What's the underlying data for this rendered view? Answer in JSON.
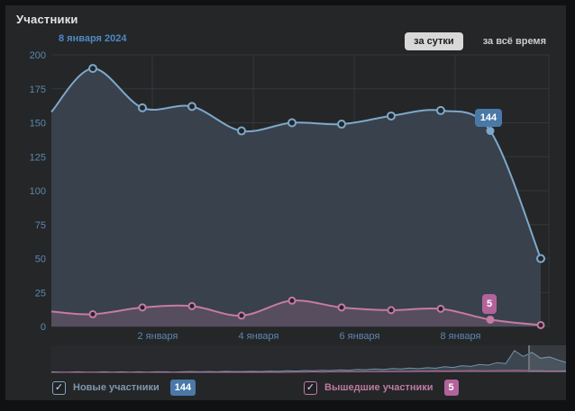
{
  "panel": {
    "title": "Участники"
  },
  "header": {
    "date_label": "8 января 2024",
    "range_buttons": [
      {
        "label": "за сутки",
        "active": true
      },
      {
        "label": "за всё время",
        "active": false
      }
    ]
  },
  "chart_data": {
    "type": "area",
    "title": "Участники",
    "tooltip_date": "8 января 2024",
    "x_tick_labels": [
      "2 января",
      "4 января",
      "6 января",
      "8 января"
    ],
    "y_ticks": [
      0,
      25,
      50,
      75,
      100,
      125,
      150,
      175,
      200
    ],
    "ylim": [
      0,
      200
    ],
    "grid": true,
    "legend_position": "bottom",
    "series": [
      {
        "name": "Новые участники",
        "color": "#7ea8ca",
        "fill": "#38414c",
        "values": [
          158,
          190,
          161,
          162,
          144,
          150,
          149,
          155,
          159,
          144,
          50
        ],
        "highlight_index": 9,
        "highlight_value_label": "144"
      },
      {
        "name": "Вышедшие участники",
        "color": "#c67ba2",
        "fill": "rgba(198,123,162,0.22)",
        "values": [
          11,
          9,
          14,
          15,
          8,
          19,
          14,
          12,
          13,
          5,
          1
        ],
        "highlight_index": 9,
        "highlight_value_label": "5"
      }
    ],
    "navigator": {
      "blue": [
        2,
        1,
        1,
        2,
        1,
        1,
        2,
        1,
        2,
        1,
        2,
        1,
        2,
        2,
        1,
        2,
        3,
        2,
        3,
        2,
        4,
        3,
        3,
        4,
        3,
        5,
        4,
        6,
        5,
        7,
        6,
        8,
        7,
        9,
        8,
        11,
        10,
        13,
        11,
        15,
        13,
        17,
        14,
        18,
        16,
        22,
        19,
        26,
        23,
        31,
        28,
        38,
        34,
        85,
        62,
        78,
        55,
        60,
        48,
        38
      ],
      "pink": [
        0,
        0,
        0,
        0,
        0,
        0,
        0,
        0,
        0,
        0,
        0,
        0,
        0,
        0,
        0,
        0,
        0,
        0,
        0,
        0,
        0,
        0,
        0,
        0,
        0,
        0,
        0,
        0,
        1,
        1,
        2,
        1,
        2,
        2,
        3,
        2,
        3,
        3,
        4,
        3,
        4,
        4,
        5,
        5,
        6,
        5,
        6,
        6,
        7,
        6,
        6,
        7,
        7,
        8,
        7,
        6,
        6,
        5,
        5,
        6
      ]
    }
  },
  "colors": {
    "panel_bg": "#242628",
    "grid": "#35383c",
    "axis_label": "#5e87ae",
    "blue_line": "#7ea8ca",
    "blue_fill": "#38414c",
    "pink_line": "#c67ba2",
    "blue_badge_bg": "#4a79a8",
    "pink_badge_bg": "#b2639b",
    "navigator_bg": "#282a2d",
    "active_button_bg": "#d8d8d8"
  },
  "legend": [
    {
      "label": "Новые участники",
      "value": "144",
      "color": "#4a79a8",
      "checked": true
    },
    {
      "label": "Вышедшие участники",
      "value": "5",
      "color": "#b2639b",
      "checked": true
    }
  ]
}
